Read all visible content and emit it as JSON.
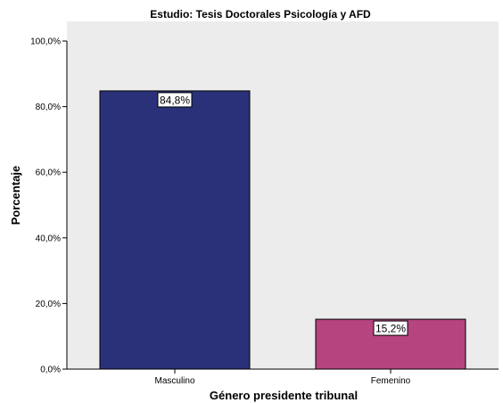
{
  "chart_data": {
    "type": "bar",
    "title": "Estudio: Tesis Doctorales Psicología y AFD",
    "xlabel": "Género presidente tribunal",
    "ylabel": "Porcentaje",
    "categories": [
      "Masculino",
      "Femenino"
    ],
    "values": [
      84.8,
      15.2
    ],
    "data_labels": [
      "84,8%",
      "15,2%"
    ],
    "ylim": [
      0,
      100
    ],
    "y_ticks": [
      0,
      20,
      40,
      60,
      80,
      100
    ],
    "y_tick_labels": [
      "0,0%",
      "20,0%",
      "40,0%",
      "60,0%",
      "80,0%",
      "100,0%"
    ],
    "bar_colors": [
      "#2b3178",
      "#b5447f"
    ],
    "plot_background": "#ececec",
    "grid": false,
    "legend": false
  }
}
